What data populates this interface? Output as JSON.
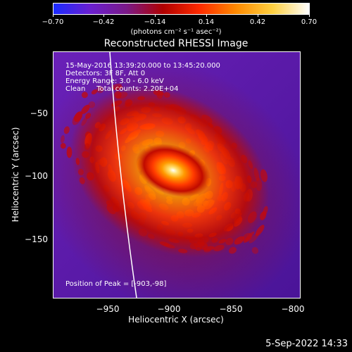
{
  "colorbar": {
    "ticks": [
      "−0.70",
      "−0.42",
      "−0.14",
      "0.14",
      "0.42",
      "0.70"
    ],
    "units": "(photons cm⁻² s⁻¹ asec⁻²)",
    "colors": [
      "#1a2bff",
      "#6a1fd0",
      "#7a1a88",
      "#b00000",
      "#ff2a00",
      "#ff8a00",
      "#ffd040",
      "#ffffff"
    ]
  },
  "title": "Reconstructed RHESSI Image",
  "annotations": {
    "line1": "15-May-2016 13:39:20.000 to 13:45:20.000",
    "line2": "Detectors: 3F 8F, Att 0",
    "line3": "Energy Range: 3.0 - 6.0 keV",
    "line4": "Clean     Total counts: 2.20E+04",
    "peak": "Position of Peak = [-903,-98]"
  },
  "axes": {
    "xlabel": "Heliocentric X (arcsec)",
    "ylabel": "Heliocentric Y (arcsec)",
    "xticks": [
      "−950",
      "−900",
      "−850",
      "−800"
    ],
    "yticks": [
      "−50",
      "−100",
      "−150"
    ]
  },
  "timestamp": "5-Sep-2022 14:33"
}
